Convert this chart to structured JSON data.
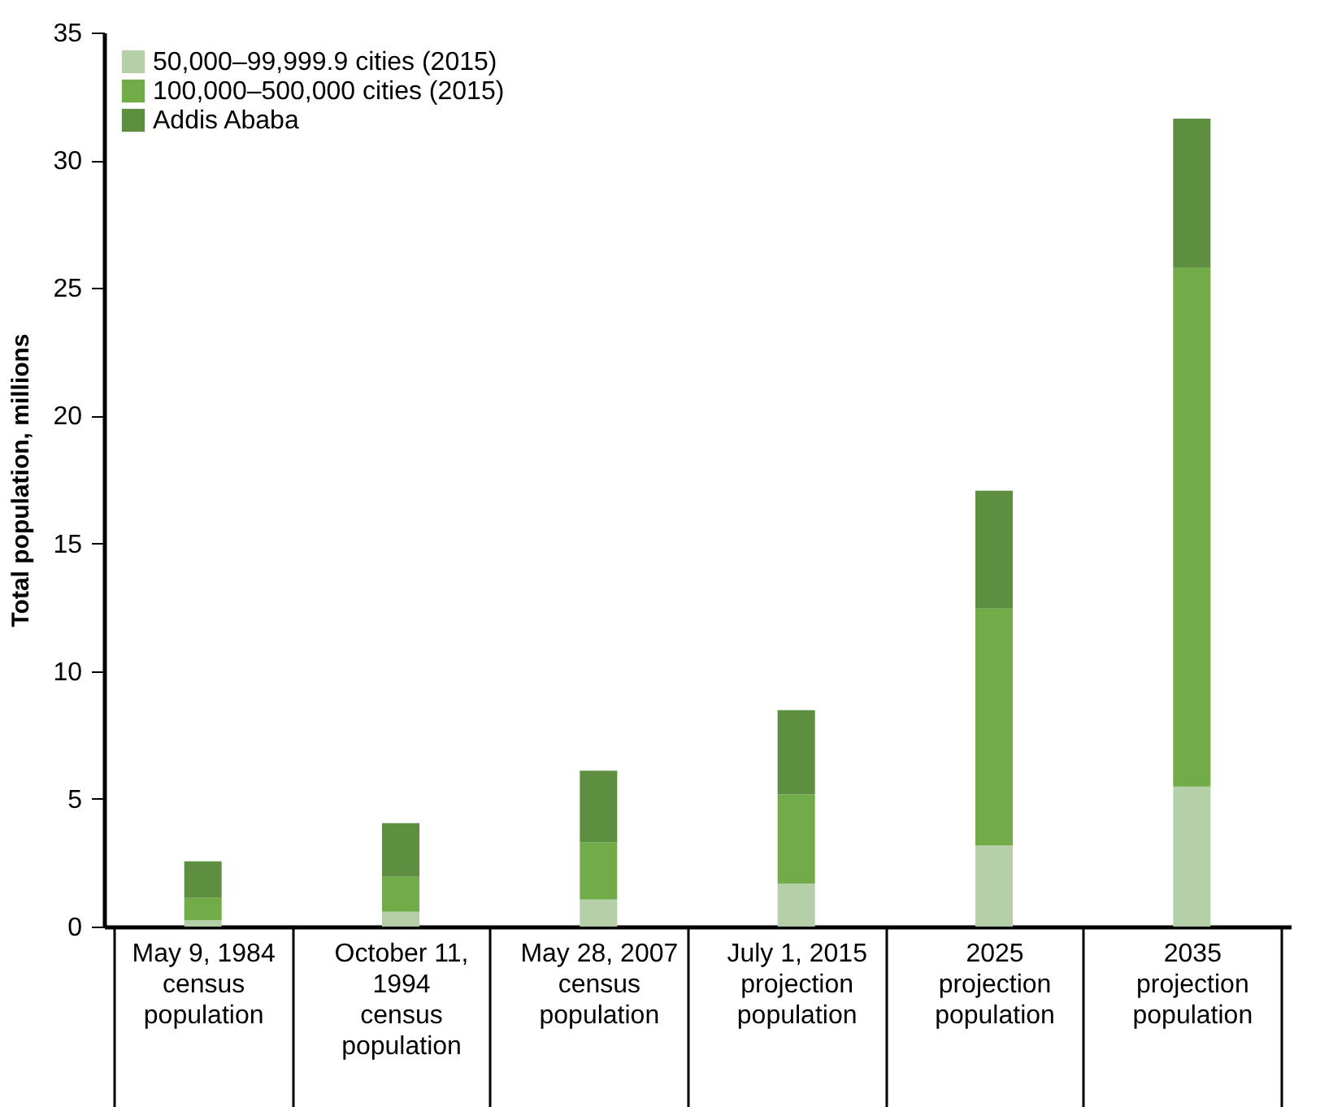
{
  "chart_data": {
    "type": "bar",
    "stacked": true,
    "ylabel": "Total population, millions",
    "categories": [
      "May 9, 1984\ncensus\npopulation",
      "October 11,\n1994\ncensus\npopulation",
      "May 28, 2007\ncensus\npopulation",
      "July 1, 2015\nprojection\npopulation",
      "2025\nprojection\npopulation",
      "2035\nprojection\npopulation"
    ],
    "series": [
      {
        "name": "50,000–99,999.9 cities (2015)",
        "color": "#b5cfa8",
        "values": [
          0.25,
          0.58,
          1.06,
          1.68,
          3.18,
          5.48
        ]
      },
      {
        "name": "100,000–500,000 cities (2015)",
        "color": "#72ac48",
        "values": [
          0.87,
          1.37,
          2.24,
          3.49,
          9.27,
          20.3
        ]
      },
      {
        "name": "Addis Ababa",
        "color": "#5e8f40",
        "values": [
          1.43,
          2.1,
          2.8,
          3.3,
          4.61,
          5.85
        ]
      }
    ],
    "ylim": [
      0,
      35
    ],
    "yticks": [
      0,
      5,
      10,
      15,
      20,
      25,
      30,
      35
    ],
    "grid": false,
    "legend": "top left"
  }
}
